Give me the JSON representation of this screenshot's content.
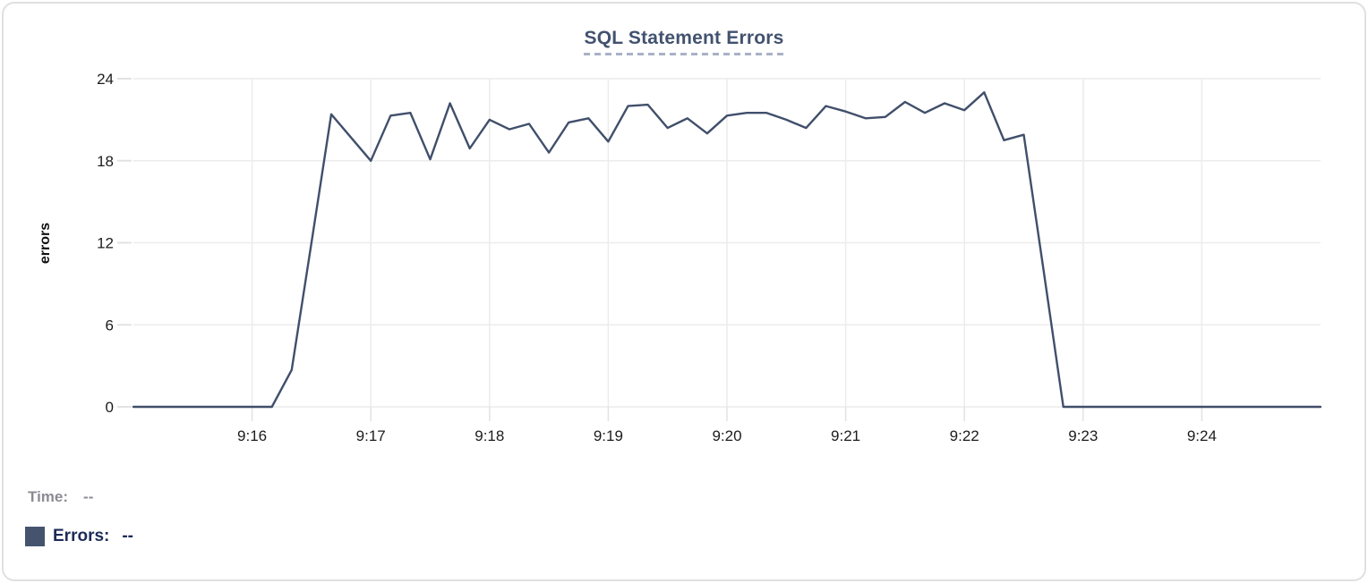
{
  "title": "SQL Statement Errors",
  "legend": {
    "time_label": "Time:",
    "time_value": "--",
    "errors_label": "Errors:",
    "errors_value": "--"
  },
  "colors": {
    "line": "#404f6b",
    "swatch": "#45536e",
    "title": "#42526f",
    "title_underline": "#a9b2c6",
    "grid": "#ececec",
    "tick": "#e2e2e2",
    "axis_text": "#1c1c1c",
    "time_text": "#8b8b93",
    "errors_text": "#1d2b57",
    "border": "#e0e0e0"
  },
  "chart_data": {
    "type": "line",
    "title": "SQL Statement Errors",
    "xlabel": "",
    "ylabel": "errors",
    "ylim": [
      0,
      24
    ],
    "y_ticks": [
      0,
      6,
      12,
      18,
      24
    ],
    "x_ticks": [
      "9:16",
      "9:17",
      "9:18",
      "9:19",
      "9:20",
      "9:21",
      "9:22",
      "9:23",
      "9:24"
    ],
    "x_range": [
      "9:15:00",
      "9:25:00"
    ],
    "grid": true,
    "legend_position": "bottom-left",
    "series": [
      {
        "name": "Errors",
        "color": "#404f6b",
        "points": [
          [
            "9:15:00",
            0
          ],
          [
            "9:15:10",
            0
          ],
          [
            "9:15:20",
            0
          ],
          [
            "9:15:30",
            0
          ],
          [
            "9:15:40",
            0
          ],
          [
            "9:15:50",
            0
          ],
          [
            "9:16:00",
            0
          ],
          [
            "9:16:10",
            0
          ],
          [
            "9:16:20",
            2.7
          ],
          [
            "9:16:30",
            12
          ],
          [
            "9:16:40",
            21.4
          ],
          [
            "9:16:50",
            19.7
          ],
          [
            "9:17:00",
            18
          ],
          [
            "9:17:10",
            21.3
          ],
          [
            "9:17:20",
            21.5
          ],
          [
            "9:17:30",
            18.1
          ],
          [
            "9:17:40",
            22.2
          ],
          [
            "9:17:50",
            18.9
          ],
          [
            "9:18:00",
            21
          ],
          [
            "9:18:10",
            20.3
          ],
          [
            "9:18:20",
            20.7
          ],
          [
            "9:18:30",
            18.6
          ],
          [
            "9:18:40",
            20.8
          ],
          [
            "9:18:50",
            21.1
          ],
          [
            "9:19:00",
            19.4
          ],
          [
            "9:19:10",
            22
          ],
          [
            "9:19:20",
            22.1
          ],
          [
            "9:19:30",
            20.4
          ],
          [
            "9:19:40",
            21.1
          ],
          [
            "9:19:50",
            20
          ],
          [
            "9:20:00",
            21.3
          ],
          [
            "9:20:10",
            21.5
          ],
          [
            "9:20:20",
            21.5
          ],
          [
            "9:20:30",
            21
          ],
          [
            "9:20:40",
            20.4
          ],
          [
            "9:20:50",
            22
          ],
          [
            "9:21:00",
            21.6
          ],
          [
            "9:21:10",
            21.1
          ],
          [
            "9:21:20",
            21.2
          ],
          [
            "9:21:30",
            22.3
          ],
          [
            "9:21:40",
            21.5
          ],
          [
            "9:21:50",
            22.2
          ],
          [
            "9:22:00",
            21.7
          ],
          [
            "9:22:10",
            23
          ],
          [
            "9:22:20",
            19.5
          ],
          [
            "9:22:30",
            19.9
          ],
          [
            "9:22:40",
            10
          ],
          [
            "9:22:50",
            0
          ],
          [
            "9:23:00",
            0
          ],
          [
            "9:23:10",
            0
          ],
          [
            "9:23:20",
            0
          ],
          [
            "9:23:30",
            0
          ],
          [
            "9:23:40",
            0
          ],
          [
            "9:23:50",
            0
          ],
          [
            "9:24:00",
            0
          ],
          [
            "9:24:10",
            0
          ],
          [
            "9:24:20",
            0
          ],
          [
            "9:24:30",
            0
          ],
          [
            "9:24:40",
            0
          ],
          [
            "9:24:50",
            0
          ],
          [
            "9:25:00",
            0
          ]
        ]
      }
    ]
  }
}
